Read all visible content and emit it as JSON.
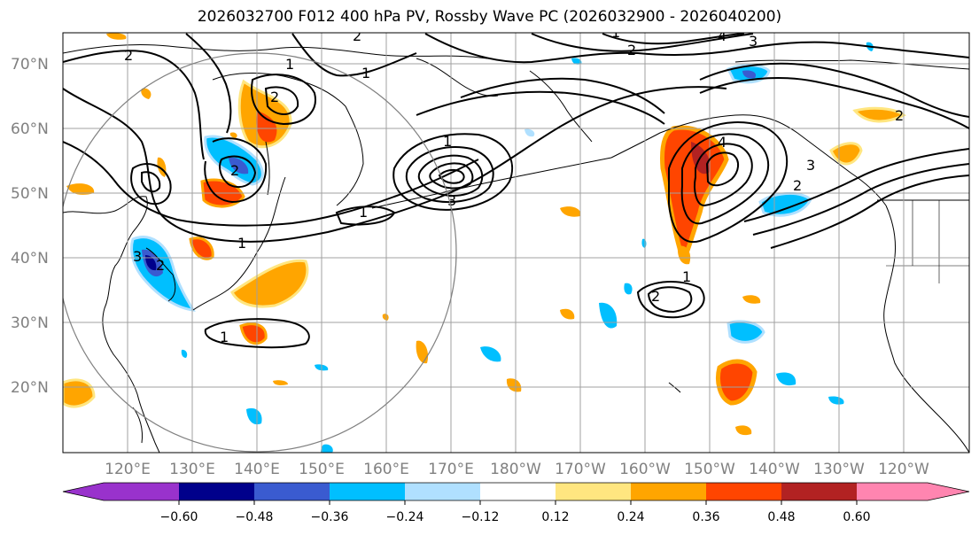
{
  "title": "2026032700 F012 400 hPa PV, Rossby Wave PC (2026032900 - 2026040200)",
  "map": {
    "lat_labels": [
      "70°N",
      "60°N",
      "50°N",
      "40°N",
      "30°N",
      "20°N"
    ],
    "lon_labels": [
      "120°E",
      "130°E",
      "140°E",
      "150°E",
      "160°E",
      "170°E",
      "180°W",
      "170°W",
      "160°W",
      "150°W",
      "140°W",
      "130°W",
      "120°W"
    ],
    "contour_labels": [
      "1",
      "2",
      "3",
      "4"
    ]
  },
  "colorbar": {
    "ticks": [
      "−0.60",
      "−0.48",
      "−0.36",
      "−0.24",
      "−0.12",
      "0.12",
      "0.24",
      "0.36",
      "0.48",
      "0.60"
    ],
    "colors": [
      "#9932cc",
      "#00008b",
      "#3a5bd0",
      "#00bfff",
      "#b0e0ff",
      "#ffffff",
      "#ffe680",
      "#ffa500",
      "#ff4500",
      "#b22222",
      "#ff85b0"
    ]
  },
  "colors": {
    "grid": "#a0a0a0",
    "coast": "#000000",
    "contour": "#000000",
    "circle": "#808080"
  }
}
